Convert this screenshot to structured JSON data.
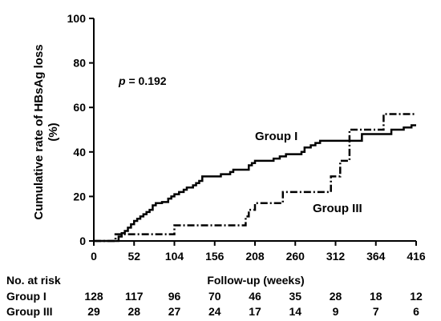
{
  "chart_data": {
    "type": "line",
    "step": true,
    "xlabel": "Follow-up (weeks)",
    "ylabel": [
      "Cumulative rate of HBsAg loss",
      "(%)"
    ],
    "xlim": [
      0,
      416
    ],
    "ylim": [
      0,
      100
    ],
    "x_ticks": [
      0,
      52,
      104,
      156,
      208,
      260,
      312,
      364,
      416
    ],
    "y_ticks": [
      0,
      20,
      40,
      60,
      80,
      100
    ],
    "annotation": {
      "italic": "p",
      "text": " = 0.192"
    },
    "series": [
      {
        "name": "Group I",
        "style": "solid",
        "points": [
          [
            0,
            0
          ],
          [
            30,
            0
          ],
          [
            32,
            2
          ],
          [
            36,
            3.5
          ],
          [
            40,
            4.5
          ],
          [
            44,
            6
          ],
          [
            48,
            7.5
          ],
          [
            52,
            9
          ],
          [
            56,
            10
          ],
          [
            60,
            11
          ],
          [
            64,
            12
          ],
          [
            68,
            13
          ],
          [
            72,
            14
          ],
          [
            76,
            16
          ],
          [
            80,
            17
          ],
          [
            88,
            17.5
          ],
          [
            96,
            19
          ],
          [
            100,
            20
          ],
          [
            104,
            21
          ],
          [
            110,
            22
          ],
          [
            116,
            23
          ],
          [
            120,
            24
          ],
          [
            128,
            25
          ],
          [
            132,
            26
          ],
          [
            136,
            27
          ],
          [
            140,
            29
          ],
          [
            156,
            29
          ],
          [
            164,
            30
          ],
          [
            176,
            31
          ],
          [
            180,
            32
          ],
          [
            196,
            32
          ],
          [
            200,
            34
          ],
          [
            204,
            35
          ],
          [
            208,
            36
          ],
          [
            224,
            36
          ],
          [
            232,
            37
          ],
          [
            240,
            38
          ],
          [
            248,
            39
          ],
          [
            268,
            40
          ],
          [
            272,
            42
          ],
          [
            280,
            43
          ],
          [
            286,
            44
          ],
          [
            292,
            45
          ],
          [
            340,
            45
          ],
          [
            346,
            48
          ],
          [
            380,
            48
          ],
          [
            384,
            50
          ],
          [
            400,
            51
          ],
          [
            410,
            52
          ],
          [
            416,
            52
          ]
        ]
      },
      {
        "name": "Group III",
        "style": "dashdot",
        "points": [
          [
            0,
            0
          ],
          [
            25,
            0
          ],
          [
            28,
            3
          ],
          [
            100,
            3
          ],
          [
            104,
            7
          ],
          [
            190,
            7
          ],
          [
            196,
            11
          ],
          [
            200,
            14
          ],
          [
            208,
            17
          ],
          [
            240,
            17
          ],
          [
            244,
            22
          ],
          [
            302,
            22
          ],
          [
            306,
            29
          ],
          [
            314,
            29
          ],
          [
            318,
            36
          ],
          [
            326,
            36
          ],
          [
            330,
            50
          ],
          [
            370,
            50
          ],
          [
            374,
            57
          ],
          [
            416,
            57
          ]
        ]
      }
    ],
    "series_labels": [
      "Group I",
      "Group III"
    ]
  },
  "risk_table": {
    "title": "No. at risk",
    "rows": [
      {
        "label": "Group I",
        "values": [
          "128",
          "117",
          "96",
          "70",
          "46",
          "35",
          "28",
          "18",
          "12"
        ]
      },
      {
        "label": "Group III",
        "values": [
          "29",
          "28",
          "27",
          "24",
          "17",
          "14",
          "9",
          "7",
          "6"
        ]
      }
    ]
  }
}
